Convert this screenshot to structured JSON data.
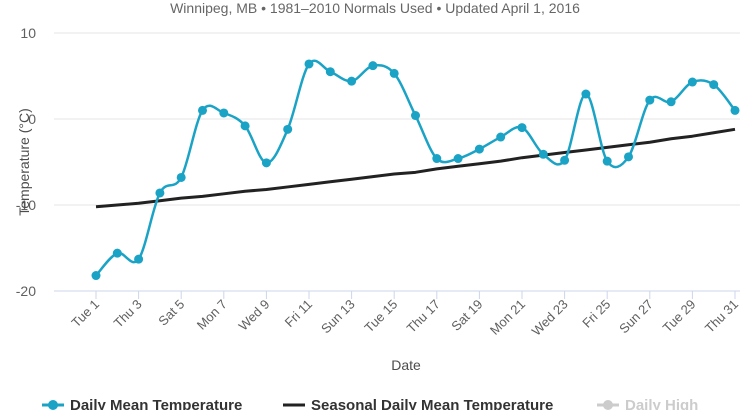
{
  "chart_data": {
    "type": "line",
    "subtitle": "Winnipeg, MB • 1981–2010 Normals Used • Updated April 1, 2016",
    "xlabel": "Date",
    "ylabel": "Temperature (°C)",
    "ylim": [
      -20,
      10
    ],
    "yticks": [
      10,
      0,
      -10,
      -20
    ],
    "x_days": [
      1,
      2,
      3,
      4,
      5,
      6,
      7,
      8,
      9,
      10,
      11,
      12,
      13,
      14,
      15,
      16,
      17,
      18,
      19,
      20,
      21,
      22,
      23,
      24,
      25,
      26,
      27,
      28,
      29,
      30,
      31
    ],
    "xtick_labels": [
      {
        "day": 1,
        "label": "Tue 1"
      },
      {
        "day": 3,
        "label": "Thu 3"
      },
      {
        "day": 5,
        "label": "Sat 5"
      },
      {
        "day": 7,
        "label": "Mon 7"
      },
      {
        "day": 9,
        "label": "Wed 9"
      },
      {
        "day": 11,
        "label": "Fri 11"
      },
      {
        "day": 13,
        "label": "Sun 13"
      },
      {
        "day": 15,
        "label": "Tue 15"
      },
      {
        "day": 17,
        "label": "Thu 17"
      },
      {
        "day": 19,
        "label": "Sat 19"
      },
      {
        "day": 21,
        "label": "Mon 21"
      },
      {
        "day": 23,
        "label": "Wed 23"
      },
      {
        "day": 25,
        "label": "Fri 25"
      },
      {
        "day": 27,
        "label": "Sun 27"
      },
      {
        "day": 29,
        "label": "Tue 29"
      },
      {
        "day": 31,
        "label": "Thu 31"
      }
    ],
    "grid": true,
    "legend_position": "bottom",
    "series": [
      {
        "name": "Daily Mean Temperature",
        "color": "#1ba3c6",
        "markers": true,
        "values": [
          -18.2,
          -15.6,
          -16.3,
          -8.6,
          -6.8,
          1.0,
          0.7,
          -0.8,
          -5.1,
          -1.2,
          6.4,
          5.5,
          4.4,
          6.2,
          5.3,
          0.4,
          -4.6,
          -4.6,
          -3.5,
          -2.1,
          -1.0,
          -4.1,
          -4.8,
          2.9,
          -4.9,
          -4.4,
          2.2,
          2.0,
          4.3,
          4.0,
          1.0
        ]
      },
      {
        "name": "Seasonal Daily Mean Temperature",
        "color": "#222222",
        "markers": false,
        "values": [
          -10.2,
          -10.0,
          -9.8,
          -9.5,
          -9.2,
          -9.0,
          -8.7,
          -8.4,
          -8.2,
          -7.9,
          -7.6,
          -7.3,
          -7.0,
          -6.7,
          -6.4,
          -6.2,
          -5.8,
          -5.5,
          -5.2,
          -4.9,
          -4.5,
          -4.2,
          -3.9,
          -3.6,
          -3.3,
          -3.0,
          -2.7,
          -2.3,
          -2.0,
          -1.6,
          -1.2
        ]
      }
    ],
    "legend": [
      {
        "name": "Daily Mean Temperature",
        "color": "#1ba3c6",
        "marker": true,
        "active": true
      },
      {
        "name": "Seasonal Daily Mean Temperature",
        "color": "#222222",
        "marker": false,
        "active": true
      },
      {
        "name": "Daily High",
        "color": "#cccccc",
        "marker": true,
        "active": false
      }
    ]
  }
}
